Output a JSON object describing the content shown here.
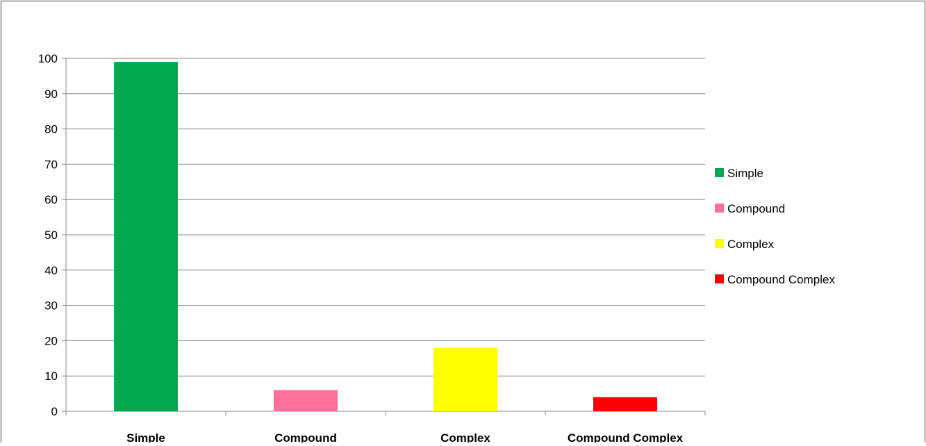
{
  "chart_data": {
    "type": "bar",
    "title": "",
    "xlabel": "",
    "ylabel": "",
    "categories": [
      "Simple",
      "Compound",
      "Complex",
      "Compound Complex"
    ],
    "values": [
      99,
      6,
      18,
      4
    ],
    "colors": [
      "#00A84F",
      "#FF6F9C",
      "#FFFF00",
      "#FF0000"
    ],
    "ylim": [
      0,
      100
    ],
    "yticks": [
      0,
      10,
      20,
      30,
      40,
      50,
      60,
      70,
      80,
      90,
      100
    ],
    "ytick_labels": [
      "0",
      "10",
      "20",
      "30",
      "40",
      "50",
      "60",
      "70",
      "80",
      "90",
      "100"
    ],
    "grid": true,
    "legend": {
      "position": "right",
      "entries": [
        "Simple",
        "Compound",
        "Complex",
        "Compound Complex"
      ]
    },
    "gridline_color": "#868686",
    "frame_color": "#868686"
  }
}
